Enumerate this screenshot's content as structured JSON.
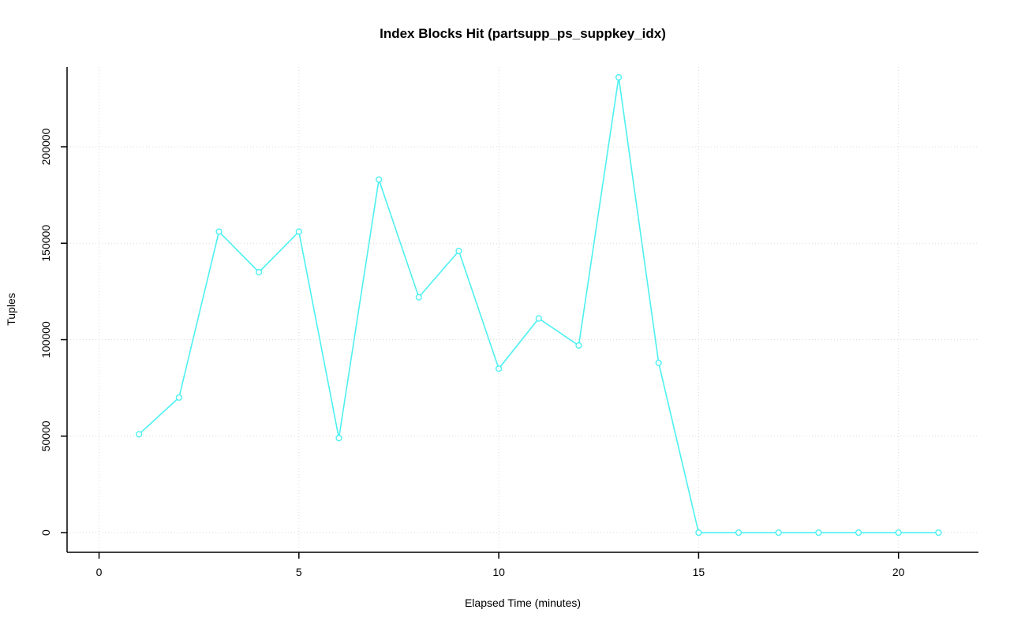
{
  "chart_data": {
    "type": "line",
    "title": "Index Blocks Hit (partsupp_ps_suppkey_idx)",
    "xlabel": "Elapsed Time (minutes)",
    "ylabel": "Tuples",
    "x": [
      1,
      2,
      3,
      4,
      5,
      6,
      7,
      8,
      9,
      10,
      11,
      12,
      13,
      14,
      15,
      16,
      17,
      18,
      19,
      20,
      21
    ],
    "y": [
      51000,
      70000,
      156000,
      135000,
      156000,
      49000,
      183000,
      122000,
      146000,
      85000,
      111000,
      97000,
      236000,
      88000,
      0,
      0,
      0,
      0,
      0,
      0,
      0
    ],
    "x_ticks": [
      0,
      5,
      10,
      15,
      20
    ],
    "y_ticks": [
      0,
      50000,
      100000,
      150000,
      200000
    ],
    "xlim": [
      -0.8,
      22.0
    ],
    "ylim": [
      -10200,
      241300
    ],
    "grid": true,
    "legend": "none",
    "marker": "open-circle",
    "line_color": "#4df0f0",
    "grid_color": "#d9d9d9",
    "axis_color": "#000000"
  }
}
